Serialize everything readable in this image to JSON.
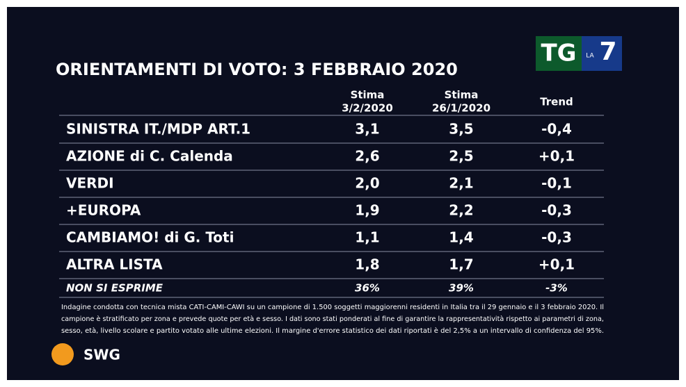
{
  "logo": {
    "tg": "TG",
    "la": "LA",
    "seven": "7"
  },
  "title": "ORIENTAMENTI DI VOTO: 3 FEBBRAIO 2020",
  "table": {
    "columns": [
      [
        "Stima",
        "3/2/2020"
      ],
      [
        "Stima",
        "26/1/2020"
      ],
      [
        "Trend"
      ]
    ],
    "rows": [
      [
        "SINISTRA IT./MDP ART.1",
        "3,1",
        "3,5",
        "-0,4"
      ],
      [
        "AZIONE di C. Calenda",
        "2,6",
        "2,5",
        "+0,1"
      ],
      [
        "VERDI",
        "2,0",
        "2,1",
        "-0,1"
      ],
      [
        "+EUROPA",
        "1,9",
        "2,2",
        "-0,3"
      ],
      [
        "CAMBIAMO! di G. Toti",
        "1,1",
        "1,4",
        "-0,3"
      ],
      [
        "ALTRA LISTA",
        "1,8",
        "1,7",
        "+0,1"
      ],
      [
        "NON SI ESPRIME",
        "36%",
        "39%",
        "-3%"
      ]
    ]
  },
  "footnote": [
    "Indagine condotta con tecnica mista CATI-CAMI-CAWI su un campione di 1.500 soggetti maggiorenni residenti in Italia tra il 29 gennaio e il 3 febbraio 2020. Il",
    "campione è stratificato per zona e prevede quote per età e sesso. I dati sono stati ponderati al fine di garantire la rappresentatività rispetto ai parametri di zona,",
    "sesso, età, livello scolare e partito votato alle ultime elezioni. Il margine d'errore statistico dei dati riportati è del 2,5% a un intervallo di confidenza del 95%."
  ],
  "source": "SWG"
}
